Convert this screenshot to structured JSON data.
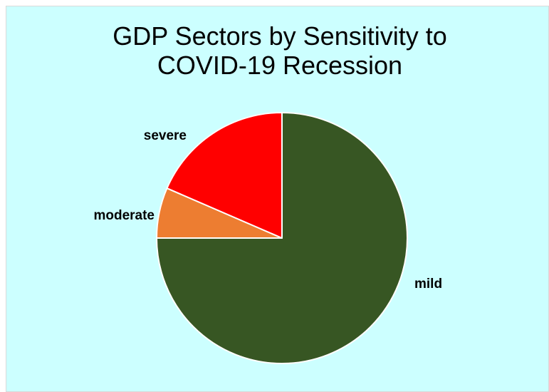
{
  "chart_data": {
    "type": "pie",
    "title_lines": [
      "GDP Sectors by Sensitivity to",
      "COVID-19 Recession"
    ],
    "slices": [
      {
        "label": "mild",
        "value": 75.0,
        "color": "#375623"
      },
      {
        "label": "moderate",
        "value": 6.5,
        "color": "#ED7D31"
      },
      {
        "label": "severe",
        "value": 18.5,
        "color": "#FF0000"
      }
    ],
    "start": "12 o'clock",
    "direction": "clockwise",
    "legend": "none",
    "background_color": "#CCFFFF",
    "slice_border_color": "#FFFFFF"
  }
}
